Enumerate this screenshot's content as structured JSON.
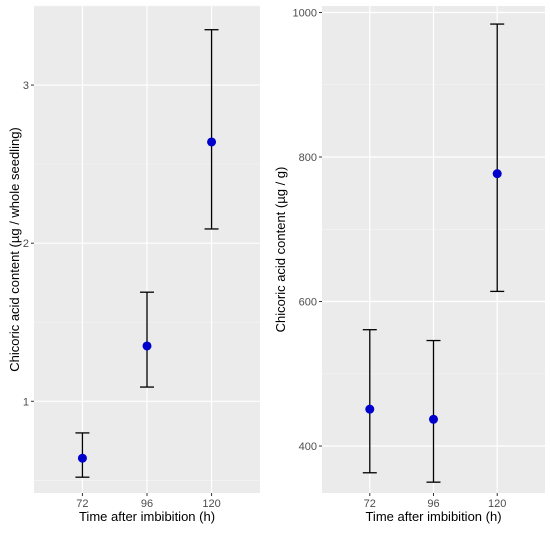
{
  "colors": {
    "panel_background": "#ebebeb",
    "grid_major": "#ffffff",
    "grid_minor": "#f5f5f5",
    "point": "#0000cd",
    "error_bar": "#000000",
    "tick_label": "#4d4d4d"
  },
  "chart_data": [
    {
      "type": "scatter",
      "title": "",
      "xlabel": "Time after imbibition (h)",
      "ylabel": "Chicoric acid content (µg / whole seedling)",
      "categories": [
        "72",
        "96",
        "120"
      ],
      "values": [
        0.64,
        1.35,
        2.64
      ],
      "error_low": [
        0.52,
        1.09,
        2.09
      ],
      "error_high": [
        0.8,
        1.69,
        3.35
      ],
      "yticks": [
        1,
        2,
        3
      ],
      "ytick_labels": [
        "1",
        "2",
        "3"
      ],
      "ylim": [
        0.42,
        3.5
      ],
      "grid": true,
      "legend": "none",
      "marker": "filled-circle",
      "error_bars": true
    },
    {
      "type": "scatter",
      "title": "",
      "xlabel": "Time after imbibition (h)",
      "ylabel": "Chicoric acid content (µg / g)",
      "categories": [
        "72",
        "96",
        "120"
      ],
      "values": [
        451,
        437,
        777
      ],
      "error_low": [
        363,
        350,
        614
      ],
      "error_high": [
        561,
        546,
        984
      ],
      "yticks": [
        400,
        600,
        800,
        1000
      ],
      "ytick_labels": [
        "400",
        "600",
        "800",
        "1000"
      ],
      "ylim": [
        335,
        1009
      ],
      "grid": true,
      "legend": "none",
      "marker": "filled-circle",
      "error_bars": true
    }
  ]
}
